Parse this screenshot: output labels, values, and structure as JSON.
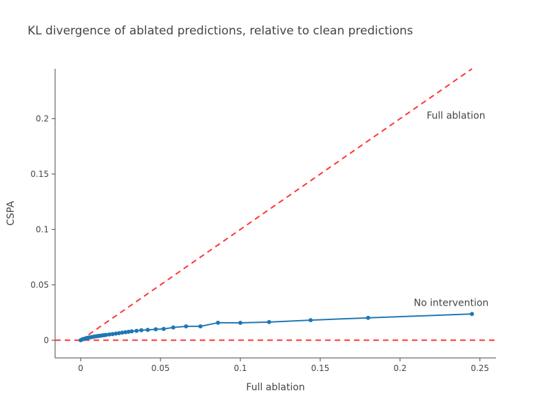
{
  "chart_data": {
    "type": "line",
    "title": "KL divergence of ablated predictions, relative to clean predictions",
    "xlabel": "Full ablation",
    "ylabel": "CSPA",
    "xlim": [
      -0.016,
      0.26
    ],
    "ylim": [
      -0.016,
      0.245
    ],
    "x_ticks": [
      0,
      0.05,
      0.1,
      0.15,
      0.2,
      0.25
    ],
    "x_tick_labels": [
      "0",
      "0.05",
      "0.1",
      "0.15",
      "0.2",
      "0.25"
    ],
    "y_ticks": [
      0,
      0.05,
      0.1,
      0.15,
      0.2
    ],
    "y_tick_labels": [
      "0",
      "0.05",
      "0.1",
      "0.15",
      "0.2"
    ],
    "grid": false,
    "legend": "none",
    "series": [
      {
        "color": "#1f77b4",
        "mode": "lines+markers",
        "x": [
          0.0,
          0.001,
          0.002,
          0.003,
          0.004,
          0.005,
          0.006,
          0.007,
          0.008,
          0.009,
          0.01,
          0.011,
          0.012,
          0.013,
          0.014,
          0.015,
          0.016,
          0.018,
          0.02,
          0.022,
          0.024,
          0.026,
          0.028,
          0.03,
          0.032,
          0.035,
          0.038,
          0.042,
          0.047,
          0.052,
          0.058,
          0.066,
          0.075,
          0.086,
          0.1,
          0.118,
          0.144,
          0.18,
          0.245
        ],
        "y": [
          0.0,
          0.0008,
          0.0012,
          0.0016,
          0.002,
          0.0023,
          0.0026,
          0.0029,
          0.0031,
          0.0034,
          0.0036,
          0.0038,
          0.004,
          0.0042,
          0.0044,
          0.0046,
          0.0048,
          0.0052,
          0.0055,
          0.006,
          0.0064,
          0.0068,
          0.0072,
          0.0076,
          0.008,
          0.0085,
          0.009,
          0.0093,
          0.0099,
          0.0102,
          0.0115,
          0.0125,
          0.0125,
          0.0158,
          0.0157,
          0.0164,
          0.0181,
          0.0202,
          0.0237
        ]
      }
    ],
    "reference_lines": [
      {
        "kind": "diagonal",
        "slope": 1,
        "color": "#ff3333",
        "dash": "dashed"
      },
      {
        "kind": "horizontal",
        "y": 0,
        "color": "#ff3333",
        "dash": "dashed"
      }
    ],
    "annotations": [
      {
        "text": "Full ablation",
        "x": 0.235,
        "y": 0.2
      },
      {
        "text": "No intervention",
        "x": 0.232,
        "y": 0.031
      }
    ]
  }
}
